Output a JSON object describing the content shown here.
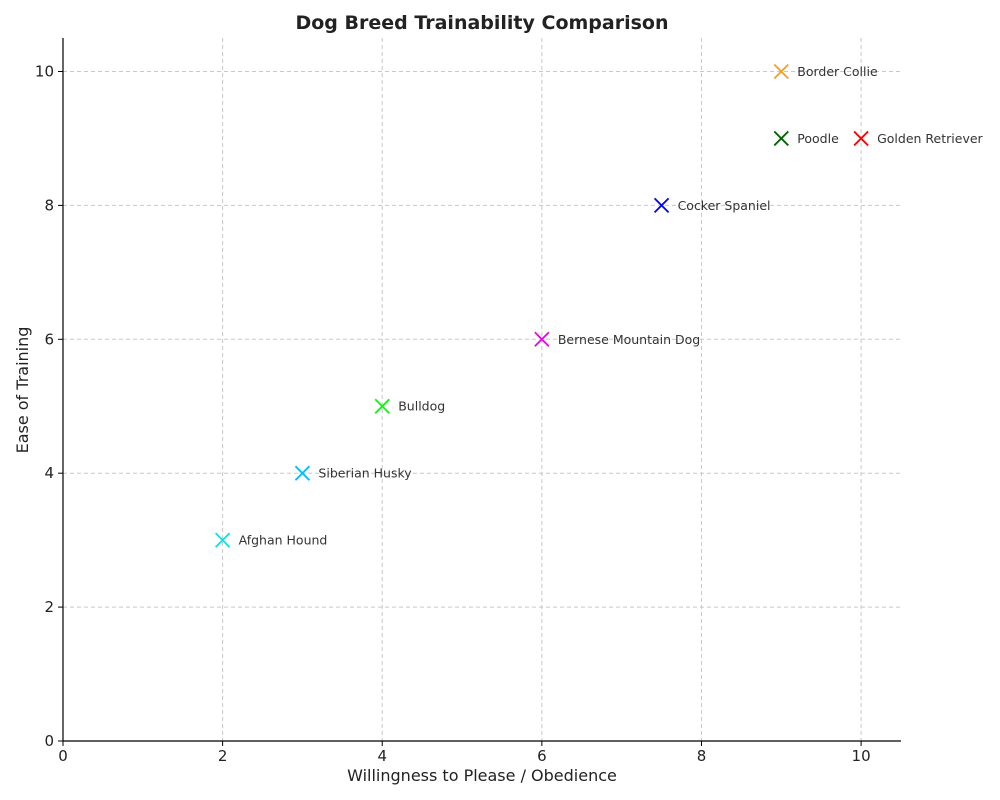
{
  "chart_data": {
    "type": "scatter",
    "title": "Dog Breed Trainability Comparison",
    "xlabel": "Willingness to Please / Obedience",
    "ylabel": "Ease of Training",
    "xlim": [
      0,
      10.5
    ],
    "ylim": [
      0,
      10.5
    ],
    "xticks": [
      "0",
      "2",
      "4",
      "6",
      "8",
      "10"
    ],
    "yticks": [
      "0",
      "2",
      "4",
      "6",
      "8",
      "10"
    ],
    "grid": true,
    "marker": "x",
    "points": [
      {
        "label": "Border Collie",
        "x": 9,
        "y": 10,
        "color": "#f4a020"
      },
      {
        "label": "Poodle",
        "x": 9,
        "y": 9,
        "color": "#006400"
      },
      {
        "label": "Golden Retriever",
        "x": 10,
        "y": 9,
        "color": "#ff0000"
      },
      {
        "label": "Cocker Spaniel",
        "x": 7.5,
        "y": 8,
        "color": "#0000ff"
      },
      {
        "label": "Bernese Mountain Dog",
        "x": 6,
        "y": 6,
        "color": "#ee00ee"
      },
      {
        "label": "Bulldog",
        "x": 4,
        "y": 5,
        "color": "#00ff00"
      },
      {
        "label": "Siberian Husky",
        "x": 3,
        "y": 4,
        "color": "#00bfff"
      },
      {
        "label": "Afghan Hound",
        "x": 2,
        "y": 3,
        "color": "#00e5ee"
      }
    ]
  }
}
